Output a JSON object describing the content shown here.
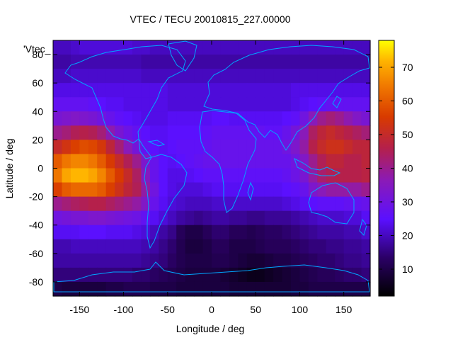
{
  "chart_data": {
    "type": "heatmap",
    "title": "VTEC / TECU 20010815_227.00000",
    "xlabel": "Longitude / deg",
    "ylabel": "Latitude / deg",
    "legend_label": "'Vtec_",
    "xlim": [
      -180,
      180
    ],
    "ylim": [
      -90,
      90
    ],
    "x_ticks": [
      -150,
      -100,
      -50,
      0,
      50,
      100,
      150
    ],
    "y_ticks": [
      -80,
      -60,
      -40,
      -20,
      0,
      20,
      40,
      60,
      80
    ],
    "colorbar": {
      "range": [
        2,
        78
      ],
      "ticks": [
        10,
        20,
        30,
        40,
        50,
        60,
        70
      ],
      "palette": "black-purple-red-orange-yellow"
    },
    "grid_step_deg": 10,
    "lon_centers": [
      -175,
      -165,
      -155,
      -145,
      -135,
      -125,
      -115,
      -105,
      -95,
      -85,
      -75,
      -65,
      -55,
      -45,
      -35,
      -25,
      -15,
      -5,
      5,
      15,
      25,
      35,
      45,
      55,
      65,
      75,
      85,
      95,
      105,
      115,
      125,
      135,
      145,
      155,
      165,
      175
    ],
    "lat_centers": [
      85,
      75,
      65,
      55,
      45,
      35,
      25,
      15,
      5,
      -5,
      -15,
      -25,
      -35,
      -45,
      -55,
      -65,
      -75,
      -85
    ],
    "values": [
      [
        20,
        20,
        21,
        22,
        22,
        22,
        22,
        22,
        22,
        21,
        21,
        20,
        20,
        20,
        20,
        20,
        20,
        20,
        20,
        20,
        20,
        20,
        20,
        20,
        20,
        20,
        20,
        20,
        20,
        20,
        20,
        20,
        20,
        20,
        20,
        20
      ],
      [
        18,
        18,
        19,
        19,
        19,
        19,
        19,
        19,
        19,
        19,
        18,
        18,
        18,
        18,
        18,
        18,
        18,
        18,
        18,
        18,
        18,
        18,
        18,
        18,
        18,
        18,
        18,
        18,
        18,
        18,
        18,
        18,
        18,
        18,
        18,
        18
      ],
      [
        20,
        20,
        21,
        21,
        21,
        21,
        21,
        21,
        21,
        21,
        20,
        20,
        20,
        20,
        20,
        20,
        20,
        20,
        20,
        20,
        20,
        20,
        20,
        20,
        20,
        20,
        20,
        20,
        20,
        20,
        20,
        20,
        20,
        20,
        20,
        20
      ],
      [
        23,
        23,
        23,
        23,
        23,
        23,
        23,
        23,
        23,
        23,
        23,
        23,
        23,
        22,
        22,
        22,
        22,
        22,
        22,
        22,
        22,
        22,
        22,
        22,
        22,
        22,
        22,
        23,
        23,
        23,
        23,
        23,
        23,
        23,
        23,
        23
      ],
      [
        27,
        27,
        27,
        27,
        26,
        25,
        24,
        24,
        23,
        23,
        23,
        23,
        23,
        22,
        22,
        22,
        22,
        22,
        22,
        22,
        22,
        22,
        22,
        22,
        22,
        22,
        22,
        23,
        24,
        25,
        26,
        27,
        27,
        27,
        27,
        27
      ],
      [
        32,
        33,
        34,
        33,
        32,
        30,
        28,
        26,
        25,
        24,
        23,
        23,
        23,
        24,
        24,
        24,
        24,
        24,
        25,
        25,
        24,
        24,
        24,
        24,
        24,
        24,
        25,
        26,
        30,
        36,
        40,
        42,
        40,
        37,
        34,
        32
      ],
      [
        40,
        42,
        45,
        46,
        45,
        42,
        37,
        32,
        29,
        27,
        25,
        24,
        24,
        25,
        25,
        25,
        25,
        26,
        27,
        27,
        27,
        27,
        27,
        27,
        26,
        26,
        28,
        31,
        36,
        44,
        48,
        50,
        48,
        46,
        44,
        42
      ],
      [
        50,
        53,
        56,
        58,
        57,
        54,
        48,
        42,
        36,
        31,
        27,
        25,
        24,
        25,
        26,
        26,
        26,
        27,
        28,
        28,
        28,
        28,
        28,
        28,
        28,
        28,
        30,
        33,
        38,
        46,
        50,
        52,
        52,
        50,
        48,
        48
      ],
      [
        60,
        64,
        66,
        66,
        64,
        60,
        55,
        50,
        45,
        40,
        33,
        28,
        25,
        24,
        25,
        26,
        27,
        28,
        28,
        28,
        28,
        28,
        28,
        28,
        28,
        28,
        28,
        30,
        34,
        40,
        45,
        48,
        48,
        46,
        46,
        48
      ],
      [
        64,
        70,
        72,
        72,
        70,
        66,
        60,
        55,
        50,
        44,
        35,
        28,
        25,
        23,
        23,
        24,
        25,
        26,
        26,
        26,
        26,
        26,
        26,
        26,
        26,
        26,
        27,
        29,
        32,
        38,
        43,
        45,
        46,
        46,
        46,
        47
      ],
      [
        56,
        60,
        62,
        62,
        62,
        60,
        56,
        52,
        48,
        45,
        38,
        30,
        25,
        23,
        22,
        22,
        22,
        23,
        24,
        24,
        24,
        24,
        24,
        24,
        24,
        24,
        25,
        26,
        28,
        33,
        36,
        38,
        38,
        38,
        38,
        40
      ],
      [
        40,
        42,
        44,
        45,
        46,
        46,
        44,
        42,
        40,
        38,
        34,
        28,
        24,
        22,
        21,
        20,
        20,
        20,
        21,
        21,
        21,
        21,
        21,
        21,
        21,
        21,
        22,
        23,
        24,
        25,
        26,
        26,
        26,
        27,
        27,
        28
      ],
      [
        30,
        31,
        32,
        32,
        33,
        33,
        32,
        31,
        30,
        29,
        27,
        24,
        22,
        20,
        18,
        17,
        16,
        17,
        18,
        18,
        17,
        17,
        16,
        16,
        17,
        17,
        17,
        18,
        19,
        20,
        21,
        21,
        21,
        22,
        22,
        24
      ],
      [
        24,
        24,
        24,
        25,
        25,
        25,
        24,
        24,
        24,
        23,
        22,
        20,
        18,
        16,
        12,
        10,
        10,
        12,
        14,
        14,
        12,
        12,
        11,
        12,
        13,
        13,
        14,
        15,
        16,
        17,
        18,
        18,
        18,
        19,
        19,
        21
      ],
      [
        19,
        19,
        20,
        20,
        20,
        20,
        20,
        20,
        20,
        20,
        19,
        18,
        16,
        14,
        11,
        9,
        9,
        10,
        12,
        12,
        10,
        10,
        10,
        11,
        12,
        12,
        12,
        13,
        14,
        15,
        15,
        16,
        16,
        17,
        17,
        18
      ],
      [
        18,
        18,
        18,
        18,
        18,
        18,
        18,
        18,
        18,
        18,
        17,
        16,
        15,
        13,
        11,
        10,
        10,
        10,
        11,
        11,
        10,
        9,
        8,
        8,
        9,
        10,
        10,
        11,
        12,
        13,
        14,
        14,
        15,
        16,
        16,
        17
      ],
      [
        15,
        15,
        15,
        15,
        15,
        15,
        15,
        15,
        15,
        14,
        14,
        13,
        12,
        11,
        10,
        9,
        9,
        9,
        9,
        8,
        7,
        6,
        5,
        5,
        6,
        7,
        8,
        9,
        10,
        11,
        12,
        12,
        13,
        14,
        14,
        15
      ],
      [
        10,
        9,
        9,
        9,
        9,
        9,
        10,
        10,
        11,
        11,
        11,
        10,
        10,
        10,
        9,
        9,
        9,
        9,
        9,
        9,
        8,
        8,
        8,
        8,
        8,
        8,
        8,
        9,
        9,
        10,
        10,
        10,
        10,
        10,
        10,
        10
      ]
    ]
  }
}
